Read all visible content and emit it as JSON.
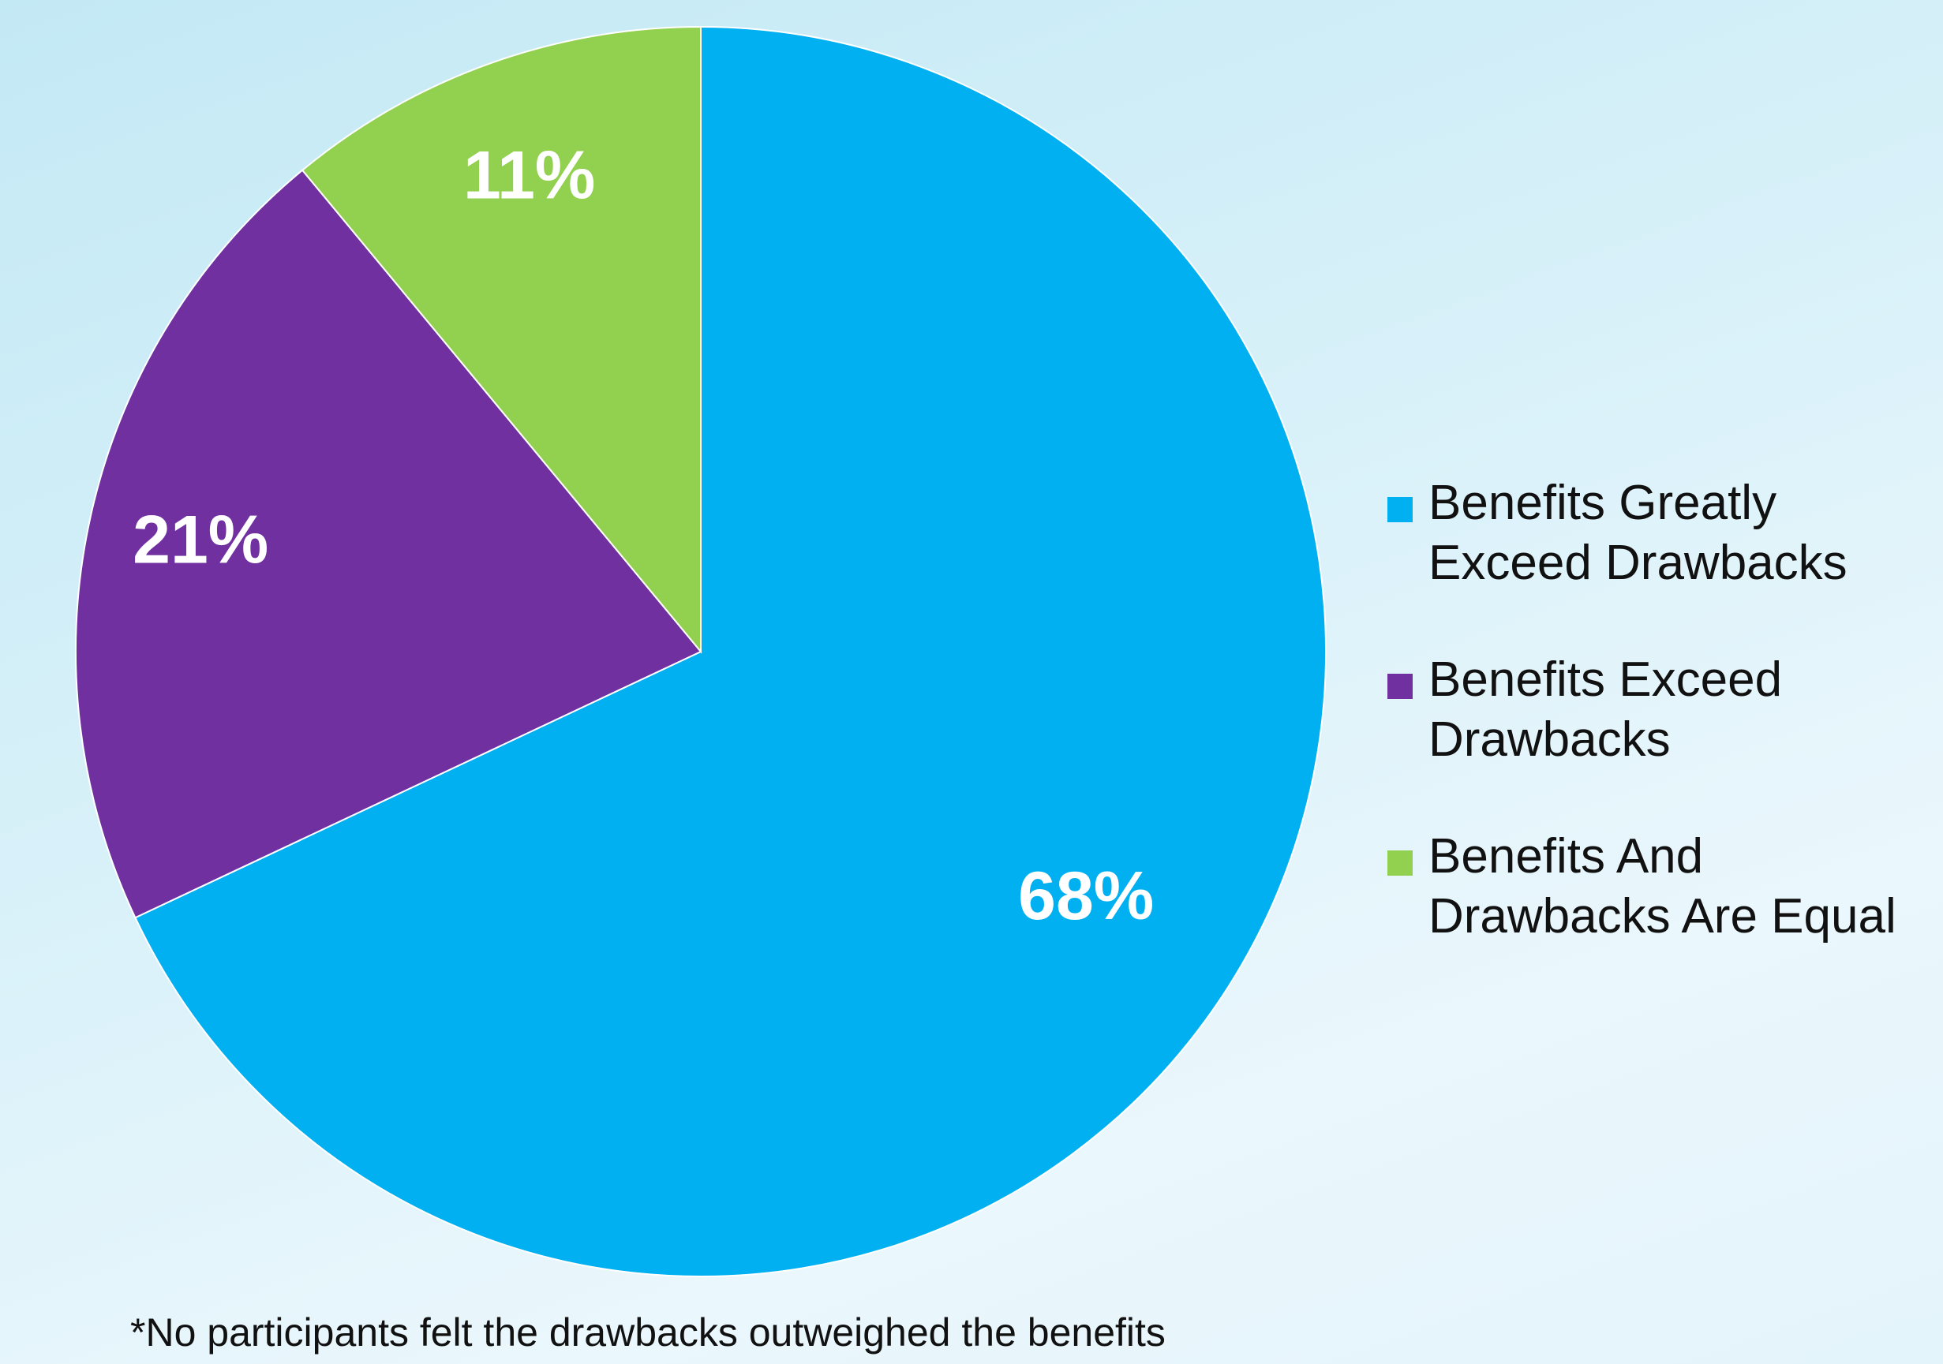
{
  "chart_data": {
    "type": "pie",
    "categories": [
      "Benefits Greatly Exceed Drawbacks",
      "Benefits Exceed Drawbacks",
      "Benefits And Drawbacks Are Equal"
    ],
    "values": [
      68,
      21,
      11
    ],
    "labels": [
      "68%",
      "21%",
      "11%"
    ],
    "colors": [
      "#00b0f0",
      "#7030a0",
      "#92d050"
    ],
    "legend_placement": "right",
    "annotations": [
      "*No participants felt the drawbacks outweighed the benefits"
    ]
  },
  "legend": {
    "items": [
      {
        "line1": "Benefits Greatly",
        "line2": "Exceed Drawbacks",
        "color": "#00b0f0"
      },
      {
        "line1": "Benefits Exceed",
        "line2": "Drawbacks",
        "color": "#7030a0"
      },
      {
        "line1": "Benefits And",
        "line2": "Drawbacks Are Equal",
        "color": "#92d050"
      }
    ]
  },
  "footnote": "*No participants felt the drawbacks outweighed the benefits"
}
